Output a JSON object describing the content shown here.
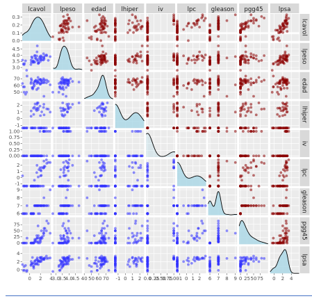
{
  "chart_data": {
    "type": "scatter",
    "variables": [
      "lcavol",
      "lpeso",
      "edad",
      "lhiper",
      "iv",
      "lpc",
      "gleason",
      "pgg45",
      "lpsa"
    ],
    "colors": {
      "upper_points": "#8b0000",
      "lower_points": "#3333ff",
      "density_fill": "#add8e6",
      "density_line": "#000000",
      "panel_bg": "#ebebeb",
      "strip_bg": "#d9d9d9",
      "bottom_rule": "#4472c4"
    },
    "ranges": {
      "lcavol": [
        -1.4,
        4.0
      ],
      "lpeso": [
        2.8,
        5.0
      ],
      "edad": [
        40,
        80
      ],
      "lhiper": [
        -1.4,
        2.6
      ],
      "iv": [
        -0.05,
        1.05
      ],
      "lpc": [
        -1.4,
        3.0
      ],
      "gleason": [
        5.8,
        9.2
      ],
      "pgg45": [
        -5,
        105
      ],
      "lpsa": [
        -0.9,
        5.8
      ]
    },
    "x_ticks": {
      "lcavol": {
        "values": [
          0,
          2,
          4
        ],
        "labels": [
          "0",
          "2",
          "4"
        ]
      },
      "lpeso": {
        "values": [
          3.0,
          3.5,
          4.0,
          4.5
        ],
        "labels": [
          "3.0",
          "3.5",
          "4.0",
          "4.5"
        ]
      },
      "edad": {
        "values": [
          40,
          50,
          60,
          70
        ],
        "labels": [
          "40",
          "50",
          "60",
          "70"
        ]
      },
      "lhiper": {
        "values": [
          -1,
          0,
          1,
          2
        ],
        "labels": [
          "-1",
          "0",
          "1",
          "2"
        ]
      },
      "iv": {
        "values": [
          0.0,
          0.25,
          0.5,
          0.75,
          1.0
        ],
        "labels": [
          "0.0",
          "0.25",
          "0.50",
          "0.75",
          "1.00"
        ]
      },
      "lpc": {
        "values": [
          -1,
          0,
          1,
          2
        ],
        "labels": [
          "-1",
          "0",
          "1",
          "2"
        ]
      },
      "gleason": {
        "values": [
          6,
          7,
          8,
          9
        ],
        "labels": [
          "6",
          "7",
          "8",
          "9"
        ]
      },
      "pgg45": {
        "values": [
          0,
          25,
          50,
          75
        ],
        "labels": [
          "0",
          "25",
          "50",
          "75"
        ]
      },
      "lpsa": {
        "values": [
          0,
          2,
          4
        ],
        "labels": [
          "0",
          "2",
          "4"
        ]
      }
    },
    "y_ticks": {
      "lcavol": {
        "values": [
          0.0,
          0.1,
          0.2,
          0.3
        ],
        "labels": [
          "0.0",
          "0.1",
          "0.2",
          "0.3"
        ],
        "density_max": 0.34
      },
      "lpeso": {
        "values": [
          3.0,
          3.5,
          4.0,
          4.5
        ],
        "labels": [
          "3.0",
          "3.5",
          "4.0",
          "4.5"
        ]
      },
      "edad": {
        "values": [
          50,
          60,
          70
        ],
        "labels": [
          "50",
          "60",
          "70"
        ]
      },
      "lhiper": {
        "values": [
          -1,
          0,
          1,
          2
        ],
        "labels": [
          "-1",
          "0",
          "1",
          "2"
        ]
      },
      "iv": {
        "values": [
          0.0,
          0.25,
          0.5,
          0.75,
          1.0
        ],
        "labels": [
          "0.00",
          "0.25",
          "0.50",
          "0.75",
          "1.00"
        ]
      },
      "lpc": {
        "values": [
          -1,
          0,
          1,
          2
        ],
        "labels": [
          "-1",
          "0",
          "1",
          "2"
        ]
      },
      "gleason": {
        "values": [
          6,
          7,
          8,
          9
        ],
        "labels": [
          "6",
          "7",
          "8",
          "9"
        ]
      },
      "pgg45": {
        "values": [
          0,
          25,
          50,
          75
        ],
        "labels": [
          "0",
          "25",
          "50",
          "75"
        ]
      },
      "lpsa": {
        "values": [
          0,
          2,
          4
        ],
        "labels": [
          "0",
          "2",
          "4"
        ]
      }
    },
    "data": {
      "lcavol": [
        -0.58,
        -0.99,
        -0.51,
        -1.2,
        0.75,
        -1.05,
        0.74,
        0.69,
        -0.78,
        0.22,
        0.25,
        -1.35,
        1.6,
        1.06,
        1.33,
        0.46,
        0.94,
        0.36,
        1.31,
        0.57,
        1.86,
        2.0,
        1.55,
        0.88,
        0.27,
        2.16,
        1.73,
        1.57,
        1.0,
        1.58,
        1.15,
        2.11,
        2.68,
        2.58,
        1.36,
        2.33,
        2.57,
        2.64,
        3.18,
        2.65,
        3.47,
        2.03,
        3.82,
        2.84,
        1.41,
        1.92,
        0.51,
        2.06,
        2.24,
        3.12
      ],
      "lpeso": [
        2.77,
        3.32,
        2.69,
        3.28,
        3.43,
        3.23,
        3.47,
        3.54,
        3.54,
        3.24,
        3.6,
        3.6,
        3.36,
        3.77,
        3.94,
        3.78,
        3.43,
        3.87,
        3.59,
        3.41,
        3.8,
        3.5,
        3.52,
        3.95,
        3.42,
        3.77,
        3.38,
        3.67,
        3.98,
        3.32,
        3.73,
        3.95,
        3.69,
        4.12,
        4.27,
        3.61,
        3.6,
        3.84,
        3.97,
        3.78,
        3.58,
        3.68,
        3.89,
        3.96,
        4.76,
        3.9,
        3.51,
        3.63,
        3.87,
        4.02
      ],
      "edad": [
        50,
        58,
        74,
        58,
        62,
        50,
        64,
        58,
        47,
        63,
        65,
        63,
        65,
        67,
        63,
        57,
        66,
        68,
        54,
        55,
        69,
        69,
        72,
        60,
        70,
        64,
        64,
        68,
        66,
        56,
        68,
        67,
        65,
        70,
        66,
        64,
        68,
        64,
        68,
        44,
        66,
        62,
        61,
        68,
        65,
        62,
        56,
        69,
        67,
        64
      ],
      "lhiper": [
        -1.39,
        -1.39,
        -1.39,
        -1.39,
        -1.39,
        -1.39,
        0.62,
        1.54,
        -1.39,
        -1.39,
        0.35,
        -1.39,
        1.57,
        -1.39,
        1.51,
        -1.39,
        -1.39,
        -1.39,
        1.18,
        -1.39,
        -1.39,
        0.44,
        2.33,
        1.7,
        1.13,
        -1.39,
        -1.39,
        1.3,
        2.17,
        -1.39,
        1.38,
        -1.39,
        0.55,
        1.66,
        2.12,
        -1.39,
        -1.39,
        2.12,
        1.44,
        -1.39,
        1.4,
        -1.39,
        0.97,
        -1.39,
        2.33,
        1.85,
        -1.39,
        -1.39,
        1.0,
        -1.39
      ],
      "iv": [
        0,
        0,
        0,
        0,
        0,
        0,
        0,
        0,
        0,
        0,
        0,
        0,
        0,
        0,
        0,
        0,
        0,
        0,
        0,
        0,
        0,
        0,
        0,
        0,
        0,
        0,
        0,
        0,
        0,
        0,
        0,
        0,
        0,
        1,
        0,
        0,
        1,
        1,
        0,
        1,
        1,
        0,
        1,
        1,
        0,
        1,
        0,
        0,
        0,
        1
      ],
      "lpc": [
        -1.39,
        -1.39,
        -1.39,
        -1.39,
        -1.39,
        -1.39,
        -1.39,
        -1.39,
        -1.39,
        -1.39,
        -1.39,
        0.29,
        -1.39,
        -1.39,
        -1.39,
        -1.39,
        -1.39,
        -1.39,
        0.81,
        -1.39,
        -1.39,
        -1.39,
        -1.39,
        -0.43,
        -1.39,
        0.36,
        1.3,
        -1.39,
        -1.39,
        0.1,
        -1.39,
        1.09,
        1.82,
        -1.39,
        2.0,
        -1.39,
        1.56,
        1.61,
        2.32,
        2.69,
        2.47,
        0.28,
        2.46,
        1.82,
        -1.39,
        1.61,
        -1.39,
        1.22,
        1.64,
        2.9
      ],
      "gleason": [
        6,
        6,
        7,
        6,
        6,
        6,
        6,
        6,
        6,
        6,
        6,
        6,
        7,
        7,
        7,
        6,
        7,
        6,
        7,
        6,
        6,
        7,
        7,
        7,
        6,
        7,
        7,
        7,
        7,
        6,
        7,
        7,
        7,
        7,
        7,
        7,
        7,
        7,
        7,
        8,
        7,
        7,
        9,
        7,
        7,
        7,
        6,
        7,
        7,
        7
      ],
      "pgg45": [
        0,
        0,
        20,
        0,
        0,
        0,
        0,
        0,
        0,
        0,
        0,
        0,
        30,
        5,
        5,
        0,
        15,
        0,
        30,
        0,
        0,
        20,
        70,
        5,
        0,
        50,
        20,
        5,
        10,
        0,
        15,
        20,
        60,
        40,
        20,
        20,
        30,
        40,
        90,
        50,
        80,
        5,
        40,
        60,
        20,
        10,
        0,
        15,
        25,
        50
      ],
      "lpsa": [
        -0.43,
        -0.16,
        -0.16,
        -0.16,
        0.37,
        0.77,
        0.77,
        0.85,
        1.05,
        1.05,
        1.27,
        1.27,
        1.27,
        1.35,
        1.4,
        1.45,
        1.49,
        1.57,
        1.6,
        1.64,
        1.98,
        2.0,
        2.01,
        2.03,
        2.05,
        2.09,
        2.16,
        2.19,
        2.21,
        2.33,
        2.37,
        2.52,
        2.53,
        2.55,
        2.58,
        2.59,
        2.7,
        2.71,
        2.79,
        2.81,
        2.85,
        2.89,
        2.92,
        2.96,
        2.96,
        3.01,
        3.04,
        3.06,
        3.08,
        3.39
      ]
    }
  }
}
